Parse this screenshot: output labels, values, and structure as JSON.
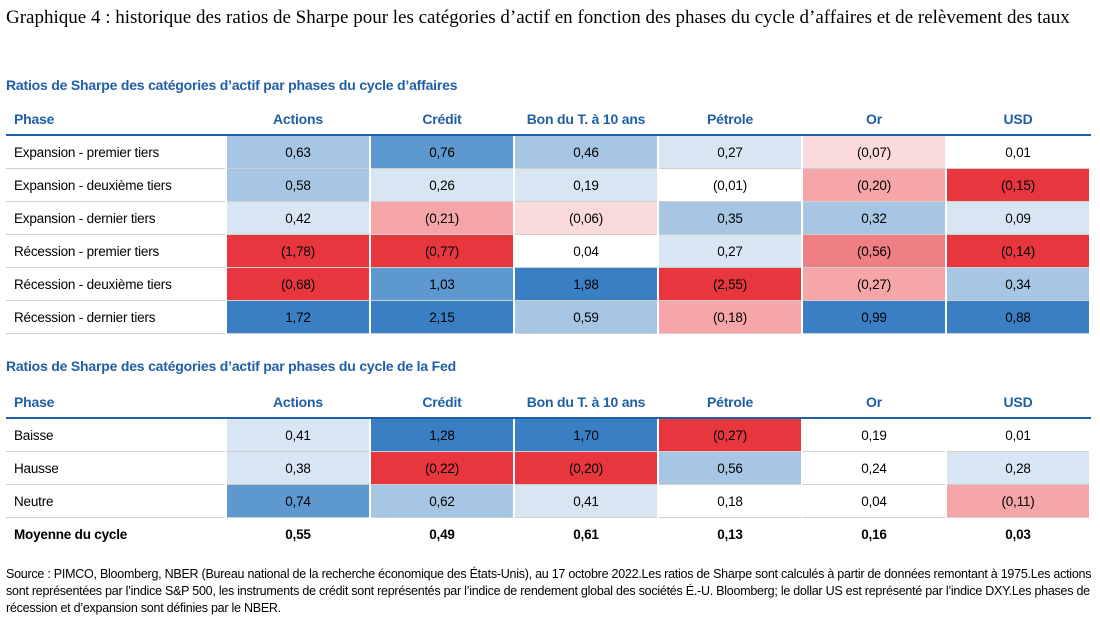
{
  "title": "Graphique 4 : historique des ratios de Sharpe pour les catégories d’actif en fonction des phases du cycle d’affaires et de relèvement des taux",
  "columns": [
    "Phase",
    "Actions",
    "Crédit",
    "Bon du T. à 10 ans",
    "Pétrole",
    "Or",
    "USD"
  ],
  "colors": {
    "header_blue": "#1f5fa8",
    "blue_dark": "#3a7fc3",
    "blue_mid": "#5d98ce",
    "blue_light": "#a6c6e4",
    "blue_pale": "#d8e6f3",
    "red_dark": "#e8363f",
    "red_mid": "#f07f84",
    "red_light": "#f6a6a9",
    "red_pale": "#fbdadb"
  },
  "table1": {
    "section_title": "Ratios de Sharpe des catégories d’actif par phases du cycle d’affaires",
    "rows": [
      {
        "phase": "Expansion - premier tiers",
        "values": [
          "0,63",
          "0,76",
          "0,46",
          "0,27",
          "(0,07)",
          "0,01"
        ],
        "colors": [
          "#a6c6e4",
          "#5d98ce",
          "#a6c6e4",
          "#d8e6f3",
          "#fbdadb",
          "#ffffff"
        ]
      },
      {
        "phase": "Expansion - deuxième tiers",
        "values": [
          "0,58",
          "0,26",
          "0,19",
          "(0,01)",
          "(0,20)",
          "(0,15)"
        ],
        "colors": [
          "#a6c6e4",
          "#d8e6f3",
          "#d8e6f3",
          "#ffffff",
          "#f6a6a9",
          "#e8363f"
        ]
      },
      {
        "phase": "Expansion - dernier tiers",
        "values": [
          "0,42",
          "(0,21)",
          "(0,06)",
          "0,35",
          "0,32",
          "0,09"
        ],
        "colors": [
          "#d8e6f3",
          "#f6a6a9",
          "#fbdadb",
          "#a6c6e4",
          "#a6c6e4",
          "#d8e6f3"
        ]
      },
      {
        "phase": "Récession - premier tiers",
        "values": [
          "(1,78)",
          "(0,77)",
          "0,04",
          "0,27",
          "(0,56)",
          "(0,14)"
        ],
        "colors": [
          "#e8363f",
          "#e8363f",
          "#ffffff",
          "#d8e6f3",
          "#f07f84",
          "#e8363f"
        ]
      },
      {
        "phase": "Récession - deuxième tiers",
        "values": [
          "(0,68)",
          "1,03",
          "1,98",
          "(2,55)",
          "(0,27)",
          "0,34"
        ],
        "colors": [
          "#e8363f",
          "#5d98ce",
          "#3a7fc3",
          "#e8363f",
          "#f6a6a9",
          "#a6c6e4"
        ]
      },
      {
        "phase": "Récession - dernier tiers",
        "values": [
          "1,72",
          "2,15",
          "0,59",
          "(0,18)",
          "0,99",
          "0,88"
        ],
        "colors": [
          "#3a7fc3",
          "#3a7fc3",
          "#a6c6e4",
          "#f6a6a9",
          "#3a7fc3",
          "#3a7fc3"
        ]
      }
    ]
  },
  "table2": {
    "section_title": "Ratios de Sharpe des catégories d’actif par phases du cycle de la Fed",
    "rows": [
      {
        "phase": "Baisse",
        "values": [
          "0,41",
          "1,28",
          "1,70",
          "(0,27)",
          "0,19",
          "0,01"
        ],
        "colors": [
          "#d8e6f3",
          "#3a7fc3",
          "#3a7fc3",
          "#e8363f",
          "#ffffff",
          "#ffffff"
        ]
      },
      {
        "phase": "Hausse",
        "values": [
          "0,38",
          "(0,22)",
          "(0,20)",
          "0,56",
          "0,24",
          "0,28"
        ],
        "colors": [
          "#d8e6f3",
          "#e8363f",
          "#e8363f",
          "#a6c6e4",
          "#ffffff",
          "#d8e6f3"
        ]
      },
      {
        "phase": "Neutre",
        "values": [
          "0,74",
          "0,62",
          "0,41",
          "0,18",
          "0,04",
          "(0,11)"
        ],
        "colors": [
          "#5d98ce",
          "#a6c6e4",
          "#d8e6f3",
          "#ffffff",
          "#ffffff",
          "#f6a6a9"
        ]
      }
    ],
    "average": {
      "phase": "Moyenne du cycle",
      "values": [
        "0,55",
        "0,49",
        "0,61",
        "0,13",
        "0,16",
        "0,03"
      ]
    }
  },
  "source": "Source : PIMCO, Bloomberg, NBER (Bureau national de la recherche économique des États-Unis), au 17 octobre 2022.Les ratios de Sharpe sont calculés à partir de données remontant à 1975.Les actions sont représentées par l’indice S&P 500, les instruments de crédit sont représentés par l’indice de rendement global des sociétés É.-U. Bloomberg; le dollar US est représenté par l’indice DXY.Les phases de récession et d’expansion sont définies par le NBER."
}
